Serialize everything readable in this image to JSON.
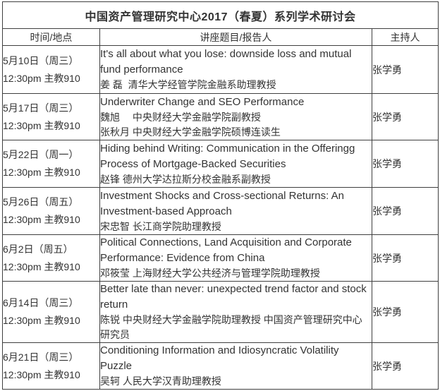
{
  "colors": {
    "background": "#ffffff",
    "text": "#333333",
    "border": "#3f3f3f"
  },
  "title": "中国资产管理研究中心2017（春夏）系列学术研讨会",
  "table": {
    "headers": [
      "时间/地点",
      "讲座题目/报告人",
      "主持人"
    ],
    "rows": [
      {
        "date": "5月10日（周三）",
        "time_location": "12:30pm 主教910",
        "talk_title": "It's all about what you lose: downside loss and mutual fund performance",
        "speakers": [
          "姜 磊  清华大学经管学院金融系助理教授"
        ],
        "host": "张学勇"
      },
      {
        "date": "5月17日（周三）",
        "time_location": "12:30pm 主教910",
        "talk_title": "Underwriter Change and SEO Performance",
        "speakers": [
          "魏旭　 中央财经大学金融学院副教授",
          "张秋月 中央财经大学金融学院硕博连读生"
        ],
        "host": "张学勇"
      },
      {
        "date": "5月22日（周一）",
        "time_location": "12:30pm 主教910",
        "talk_title": "Hiding behind Writing: Communication in the Offeringg Process of Mortgage-Backed Securities",
        "speakers": [
          "赵锋 德州大学达拉斯分校金融系副教授"
        ],
        "host": "张学勇"
      },
      {
        "date": "5月26日（周五）",
        "time_location": "12:30pm 主教910",
        "talk_title": "Investment Shocks and Cross-sectional Returns: An Investment-based Approach",
        "speakers": [
          "宋忠智 长江商学院助理教授"
        ],
        "host": "张学勇"
      },
      {
        "date": "6月2日（周五）",
        "time_location": "12:30pm 主教910",
        "talk_title": "Political Connections, Land Acquisition and Corporate Performance: Evidence from China",
        "speakers": [
          "邓筱莹 上海财经大学公共经济与管理学院助理教授"
        ],
        "host": "张学勇"
      },
      {
        "date": "6月14日（周三）",
        "time_location": "12:30pm 主教910",
        "talk_title": "Better late than never: unexpected trend factor and stock return",
        "speakers": [
          "陈锐 中央财经大学金融学院助理教授 中国资产管理研究中心研究员"
        ],
        "host": "张学勇"
      },
      {
        "date": "6月21日（周三）",
        "time_location": "12:30pm 主教910",
        "talk_title": "Conditioning Information and Idiosyncratic Volatility Puzzle",
        "speakers": [
          "吴轲 人民大学汉青助理教授"
        ],
        "host": "张学勇"
      }
    ]
  }
}
